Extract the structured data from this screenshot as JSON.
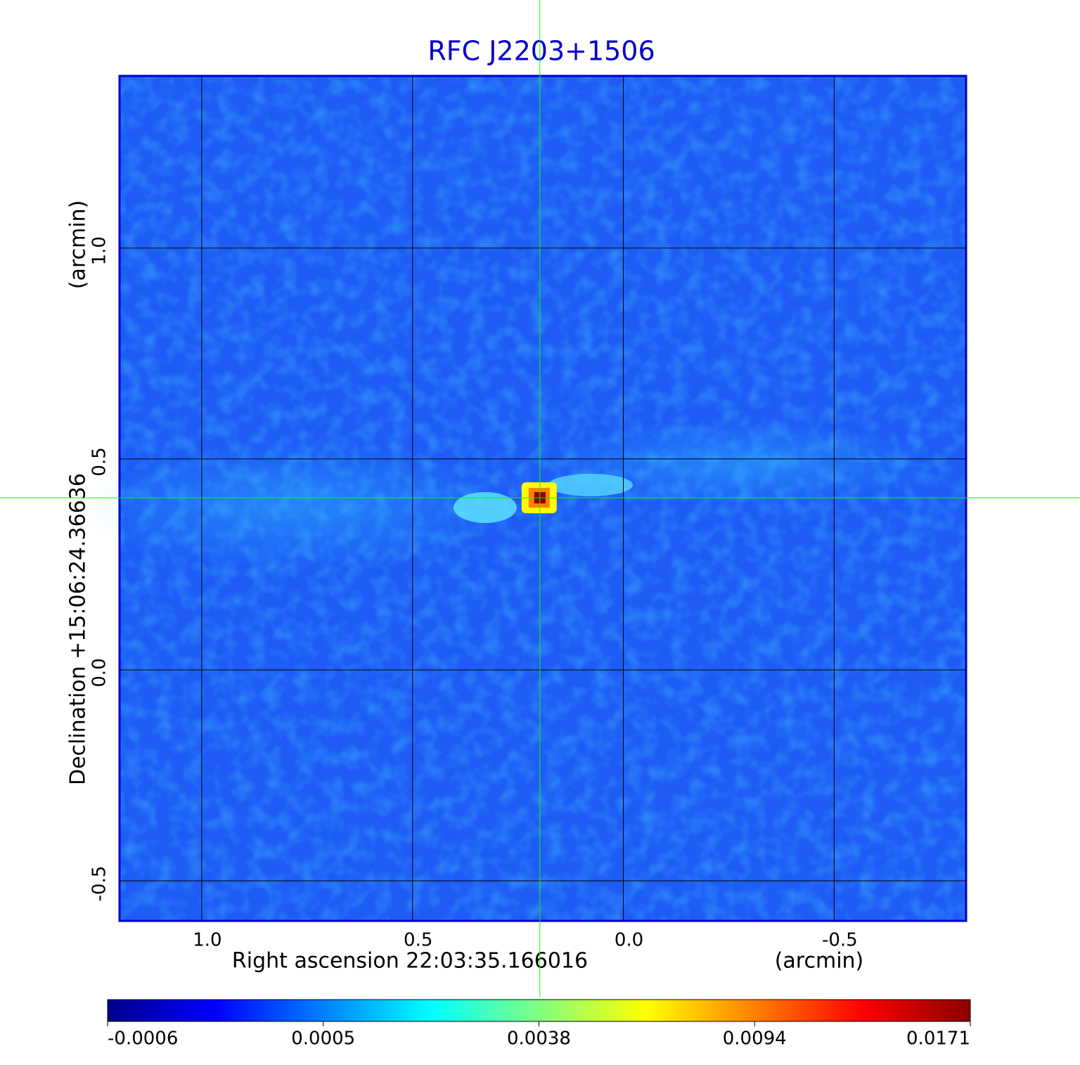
{
  "chart_data": {
    "type": "image",
    "title": "RFC J2203+1506",
    "x_label": "Right ascension  22:03:35.166016",
    "x_unit": "(arcmin)",
    "y_label": "Declination  +15:06:24.36636",
    "y_unit": "(arcmin)",
    "xlim": [
      1.195,
      -0.813
    ],
    "ylim": [
      -0.595,
      1.408
    ],
    "xticks": [
      {
        "value": 1,
        "label": "1.0"
      },
      {
        "value": 0.5,
        "label": "0.5"
      },
      {
        "value": 0,
        "label": "0.0"
      },
      -0.5
    ],
    "yticks": [
      -0.5,
      {
        "value": 0,
        "label": "0.0"
      },
      {
        "value": 0.5,
        "label": "0.5"
      },
      {
        "value": 1,
        "label": "1.0"
      }
    ],
    "grid": true,
    "crosshair": {
      "x": 0.198,
      "y": 0.408,
      "color": "#00ff00"
    },
    "colormap": [
      "#00008b",
      "#0000ff",
      "#0080ff",
      "#00ffff",
      "#80ff80",
      "#ffff00",
      "#ff8000",
      "#ff0000",
      "#8b0000"
    ],
    "colorbar_ticks": [
      -0.0006,
      0.0005,
      0.0038,
      0.0094,
      0.0171
    ]
  }
}
